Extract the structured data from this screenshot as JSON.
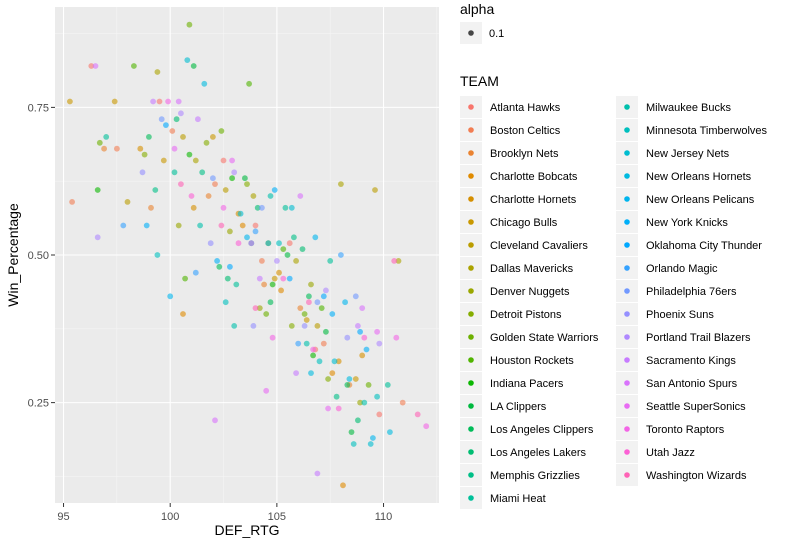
{
  "chart_data": {
    "type": "scatter",
    "title": "",
    "xlabel": "DEF_RTG",
    "ylabel": "Win_Percentage",
    "xlim": [
      94.6,
      112.6
    ],
    "ylim": [
      0.08,
      0.92
    ],
    "x_ticks": [
      95,
      100,
      105,
      110
    ],
    "x_tick_labels": [
      "95",
      "100",
      "105",
      "110"
    ],
    "y_ticks": [
      0.25,
      0.5,
      0.75
    ],
    "y_tick_labels": [
      "0.25",
      "0.50",
      "0.75"
    ],
    "grid": true,
    "point_alpha": 0.6,
    "legend_alpha": {
      "title": "alpha",
      "value_label": "0.1"
    },
    "legend_team": {
      "title": "TEAM",
      "position": "right"
    },
    "series": [
      {
        "name": "Atlanta Hawks",
        "color": "#F8766D",
        "points": [
          [
            96.3,
            0.82
          ],
          [
            99.5,
            0.76
          ],
          [
            102.5,
            0.66
          ],
          [
            104.0,
            0.55
          ],
          [
            105.6,
            0.52
          ],
          [
            106.8,
            0.34
          ],
          [
            109.8,
            0.23
          ]
        ]
      },
      {
        "name": "Boston Celtics",
        "color": "#F27D52",
        "points": [
          [
            95.4,
            0.59
          ],
          [
            97.5,
            0.68
          ],
          [
            100.1,
            0.71
          ],
          [
            102.1,
            0.62
          ],
          [
            104.3,
            0.49
          ],
          [
            107.2,
            0.35
          ],
          [
            110.9,
            0.25
          ]
        ]
      },
      {
        "name": "Brooklyn Nets",
        "color": "#EA8331",
        "points": [
          [
            96.9,
            0.68
          ],
          [
            99.1,
            0.58
          ],
          [
            101.8,
            0.6
          ],
          [
            104.4,
            0.45
          ],
          [
            106.1,
            0.41
          ],
          [
            108.4,
            0.28
          ]
        ]
      },
      {
        "name": "Charlotte Bobcats",
        "color": "#E08B00",
        "points": [
          [
            100.6,
            0.4
          ],
          [
            103.4,
            0.55
          ],
          [
            105.2,
            0.44
          ],
          [
            107.6,
            0.3
          ],
          [
            108.1,
            0.11
          ]
        ]
      },
      {
        "name": "Charlotte Hornets",
        "color": "#D58F00",
        "points": [
          [
            98.6,
            0.68
          ],
          [
            101.1,
            0.58
          ],
          [
            103.2,
            0.57
          ],
          [
            105.1,
            0.47
          ],
          [
            107.9,
            0.32
          ],
          [
            109.0,
            0.33
          ]
        ]
      },
      {
        "name": "Chicago Bulls",
        "color": "#C99800",
        "points": [
          [
            95.3,
            0.76
          ],
          [
            97.4,
            0.76
          ],
          [
            99.7,
            0.66
          ],
          [
            102.0,
            0.7
          ],
          [
            104.9,
            0.46
          ],
          [
            106.4,
            0.39
          ],
          [
            108.7,
            0.29
          ]
        ]
      },
      {
        "name": "Cleveland Cavaliers",
        "color": "#BB9D00",
        "points": [
          [
            98.0,
            0.59
          ],
          [
            100.6,
            0.7
          ],
          [
            102.6,
            0.61
          ],
          [
            104.6,
            0.52
          ],
          [
            106.9,
            0.38
          ],
          [
            109.6,
            0.61
          ]
        ]
      },
      {
        "name": "Dallas Mavericks",
        "color": "#ABA300",
        "points": [
          [
            99.4,
            0.81
          ],
          [
            101.2,
            0.66
          ],
          [
            103.9,
            0.6
          ],
          [
            105.9,
            0.49
          ],
          [
            108.0,
            0.62
          ],
          [
            110.7,
            0.49
          ]
        ]
      },
      {
        "name": "Denver Nuggets",
        "color": "#9AA700",
        "points": [
          [
            100.4,
            0.55
          ],
          [
            102.8,
            0.54
          ],
          [
            104.2,
            0.41
          ],
          [
            106.6,
            0.45
          ],
          [
            108.9,
            0.25
          ]
        ]
      },
      {
        "name": "Detroit Pistons",
        "color": "#85AD00",
        "points": [
          [
            98.8,
            0.67
          ],
          [
            101.7,
            0.69
          ],
          [
            103.6,
            0.62
          ],
          [
            105.7,
            0.38
          ],
          [
            107.4,
            0.29
          ]
        ]
      },
      {
        "name": "Golden State Warriors",
        "color": "#6DB000",
        "points": [
          [
            96.7,
            0.69
          ],
          [
            100.9,
            0.89
          ],
          [
            102.4,
            0.71
          ],
          [
            104.5,
            0.4
          ],
          [
            106.3,
            0.4
          ],
          [
            109.3,
            0.28
          ]
        ]
      },
      {
        "name": "Houston Rockets",
        "color": "#50B400",
        "points": [
          [
            98.3,
            0.82
          ],
          [
            100.7,
            0.46
          ],
          [
            103.7,
            0.79
          ],
          [
            105.3,
            0.51
          ],
          [
            107.1,
            0.41
          ]
        ]
      },
      {
        "name": "Indiana Pacers",
        "color": "#0CB702",
        "points": [
          [
            96.6,
            0.61
          ],
          [
            100.9,
            0.67
          ],
          [
            102.9,
            0.63
          ],
          [
            104.8,
            0.45
          ],
          [
            106.7,
            0.33
          ]
        ]
      },
      {
        "name": "LA Clippers",
        "color": "#00B93F",
        "points": [
          [
            101.1,
            0.82
          ],
          [
            103.5,
            0.63
          ],
          [
            105.5,
            0.5
          ],
          [
            107.3,
            0.37
          ],
          [
            108.5,
            0.2
          ]
        ]
      },
      {
        "name": "Los Angeles Clippers",
        "color": "#00BC59",
        "points": [
          [
            99.0,
            0.7
          ],
          [
            102.3,
            0.48
          ],
          [
            104.7,
            0.42
          ],
          [
            106.5,
            0.43
          ],
          [
            108.3,
            0.28
          ]
        ]
      },
      {
        "name": "Los Angeles Lakers",
        "color": "#00BD72",
        "points": [
          [
            100.3,
            0.73
          ],
          [
            102.7,
            0.46
          ],
          [
            104.1,
            0.58
          ],
          [
            106.2,
            0.51
          ],
          [
            108.8,
            0.22
          ]
        ]
      },
      {
        "name": "Memphis Grizzlies",
        "color": "#00BF87",
        "points": [
          [
            99.3,
            0.61
          ],
          [
            101.5,
            0.64
          ],
          [
            103.8,
            0.52
          ],
          [
            105.8,
            0.53
          ],
          [
            107.8,
            0.26
          ]
        ]
      },
      {
        "name": "Miami Heat",
        "color": "#00C09A",
        "points": [
          [
            97.0,
            0.7
          ],
          [
            100.2,
            0.64
          ],
          [
            103.1,
            0.45
          ],
          [
            105.4,
            0.58
          ],
          [
            107.5,
            0.49
          ],
          [
            110.2,
            0.28
          ]
        ]
      },
      {
        "name": "Milwaukee Bucks",
        "color": "#00C0AC",
        "points": [
          [
            101.4,
            0.55
          ],
          [
            103.0,
            0.38
          ],
          [
            104.7,
            0.6
          ],
          [
            106.4,
            0.35
          ],
          [
            109.1,
            0.25
          ]
        ]
      },
      {
        "name": "Minnesota Timberwolves",
        "color": "#00BFBE",
        "points": [
          [
            99.4,
            0.5
          ],
          [
            102.6,
            0.42
          ],
          [
            105.1,
            0.52
          ],
          [
            107.0,
            0.32
          ],
          [
            108.6,
            0.18
          ],
          [
            109.7,
            0.26
          ]
        ]
      },
      {
        "name": "New Jersey Nets",
        "color": "#00BDD0",
        "points": [
          [
            100.8,
            0.83
          ],
          [
            103.3,
            0.57
          ],
          [
            105.7,
            0.58
          ],
          [
            107.7,
            0.32
          ],
          [
            109.4,
            0.18
          ]
        ]
      },
      {
        "name": "New Orleans Hornets",
        "color": "#00BAE0",
        "points": [
          [
            101.6,
            0.79
          ],
          [
            104.6,
            0.52
          ],
          [
            106.6,
            0.3
          ],
          [
            108.4,
            0.29
          ],
          [
            110.3,
            0.2
          ]
        ]
      },
      {
        "name": "New Orleans Pelicans",
        "color": "#00B5EE",
        "points": [
          [
            100.0,
            0.43
          ],
          [
            103.6,
            0.53
          ],
          [
            106.8,
            0.53
          ],
          [
            108.2,
            0.42
          ],
          [
            109.5,
            0.19
          ]
        ]
      },
      {
        "name": "New York Knicks",
        "color": "#00AFF9",
        "points": [
          [
            98.9,
            0.55
          ],
          [
            102.2,
            0.49
          ],
          [
            104.9,
            0.61
          ],
          [
            107.6,
            0.4
          ],
          [
            109.2,
            0.34
          ]
        ]
      },
      {
        "name": "Oklahoma City Thunder",
        "color": "#00A8FF",
        "points": [
          [
            99.8,
            0.72
          ],
          [
            102.8,
            0.48
          ],
          [
            105.6,
            0.46
          ],
          [
            107.2,
            0.43
          ],
          [
            108.9,
            0.37
          ]
        ]
      },
      {
        "name": "Orlando Magic",
        "color": "#35A2FF",
        "points": [
          [
            97.8,
            0.55
          ],
          [
            101.2,
            0.47
          ],
          [
            104.0,
            0.54
          ],
          [
            106.0,
            0.35
          ],
          [
            108.0,
            0.5
          ]
        ]
      },
      {
        "name": "Philadelphia 76ers",
        "color": "#7299FF",
        "points": [
          [
            99.6,
            0.73
          ],
          [
            102.0,
            0.63
          ],
          [
            104.3,
            0.58
          ],
          [
            106.9,
            0.42
          ],
          [
            108.7,
            0.43
          ]
        ]
      },
      {
        "name": "Phoenix Suns",
        "color": "#9590FF",
        "points": [
          [
            98.7,
            0.64
          ],
          [
            101.9,
            0.52
          ],
          [
            103.9,
            0.38
          ],
          [
            106.3,
            0.38
          ],
          [
            108.3,
            0.36
          ]
        ]
      },
      {
        "name": "Portland Trail Blazers",
        "color": "#AF88FF",
        "points": [
          [
            96.6,
            0.53
          ],
          [
            100.5,
            0.74
          ],
          [
            103.0,
            0.64
          ],
          [
            105.0,
            0.49
          ],
          [
            107.3,
            0.44
          ],
          [
            109.8,
            0.35
          ]
        ]
      },
      {
        "name": "Sacramento Kings",
        "color": "#C77CFF",
        "points": [
          [
            99.2,
            0.76
          ],
          [
            101.3,
            0.73
          ],
          [
            104.2,
            0.46
          ],
          [
            105.9,
            0.3
          ],
          [
            106.9,
            0.13
          ],
          [
            108.8,
            0.38
          ]
        ]
      },
      {
        "name": "San Antonio Spurs",
        "color": "#D973FC",
        "points": [
          [
            96.5,
            0.82
          ],
          [
            100.4,
            0.76
          ],
          [
            102.1,
            0.22
          ],
          [
            103.8,
            0.52
          ],
          [
            106.1,
            0.6
          ],
          [
            109.0,
            0.41
          ]
        ]
      },
      {
        "name": "Seattle SuperSonics",
        "color": "#E86BF3",
        "points": [
          [
            100.2,
            0.68
          ],
          [
            102.9,
            0.66
          ],
          [
            104.5,
            0.27
          ],
          [
            107.4,
            0.24
          ],
          [
            109.7,
            0.37
          ]
        ]
      },
      {
        "name": "Toronto Raptors",
        "color": "#F365E6",
        "points": [
          [
            99.9,
            0.76
          ],
          [
            102.5,
            0.58
          ],
          [
            104.8,
            0.36
          ],
          [
            106.7,
            0.34
          ],
          [
            110.6,
            0.36
          ],
          [
            112.0,
            0.21
          ]
        ]
      },
      {
        "name": "Utah Jazz",
        "color": "#FC61D5",
        "points": [
          [
            101.0,
            0.6
          ],
          [
            103.2,
            0.52
          ],
          [
            105.3,
            0.46
          ],
          [
            107.9,
            0.24
          ],
          [
            109.1,
            0.36
          ]
        ]
      },
      {
        "name": "Washington Wizards",
        "color": "#FF63B6",
        "points": [
          [
            100.5,
            0.62
          ],
          [
            102.4,
            0.55
          ],
          [
            104.0,
            0.41
          ],
          [
            106.5,
            0.42
          ],
          [
            110.5,
            0.49
          ],
          [
            111.6,
            0.23
          ]
        ]
      }
    ]
  }
}
